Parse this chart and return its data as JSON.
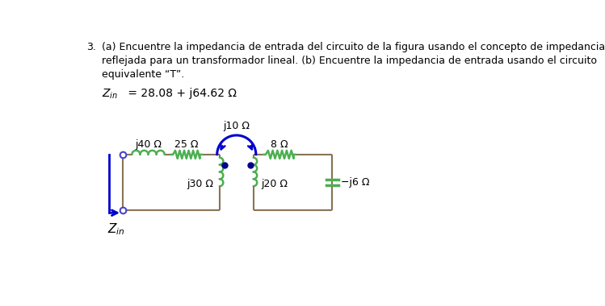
{
  "wire_color": "#8B7355",
  "inductor_color": "#4CAF50",
  "resistor_color": "#4CAF50",
  "dot_color": "#00008B",
  "arrow_color": "#0000CD",
  "coupling_color": "#0000CD",
  "bg_color": "#ffffff",
  "label_j40": "j40 Ω",
  "label_25": "25 Ω",
  "label_j10": "j10 Ω",
  "label_8": "8 Ω",
  "label_j30": "j30 Ω",
  "label_j20": "j20 Ω",
  "label_neg_j6": "−j6 Ω",
  "label_Zin": "$Z_{in}$",
  "line1": "(a) Encuentre la impedancia de entrada del circuito de la figura usando el concepto de impedancia",
  "line2": "reflejada para un transformador lineal. (b) Encuentre la impedancia de entrada usando el circuito",
  "line3": "equivalente “T”.",
  "answer_label": "$Z_{in}$",
  "answer_equals": " = 28.08 + j64.62 Ω"
}
